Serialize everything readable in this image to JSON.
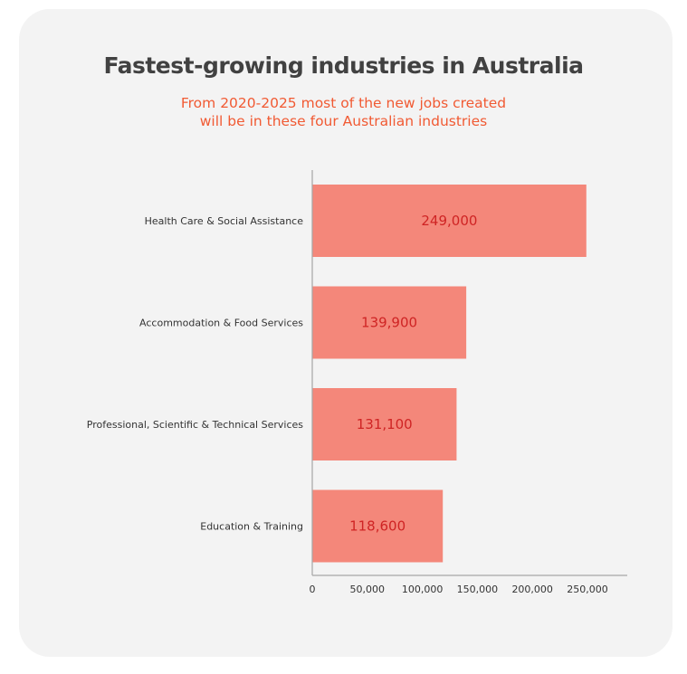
{
  "chart_data": {
    "type": "bar",
    "orientation": "horizontal",
    "title": "Fastest-growing industries in Australia",
    "subtitle": [
      "From 2020-2025 most of the new jobs created",
      "will be in these four Australian industries"
    ],
    "categories": [
      "Health Care & Social Assistance",
      "Accommodation & Food Services",
      "Professional, Scientific & Technical Services",
      "Education & Training"
    ],
    "values": [
      249000,
      139900,
      131100,
      118600
    ],
    "value_labels": [
      "249,000",
      "139,900",
      "131,100",
      "118,600"
    ],
    "xlim": [
      0,
      250000
    ],
    "xticks": [
      0,
      50000,
      100000,
      150000,
      200000,
      250000
    ],
    "xtick_labels": [
      "0",
      "50,000",
      "100,000",
      "150,000",
      "200,000",
      "250,000"
    ],
    "grid": false,
    "legend": "none"
  },
  "colors": {
    "bar": "#f4877a",
    "value_text": "#cf2424",
    "title": "#414141",
    "subtitle": "#f15a33",
    "axis": "#a6a6a6",
    "card": "#f3f3f3"
  }
}
